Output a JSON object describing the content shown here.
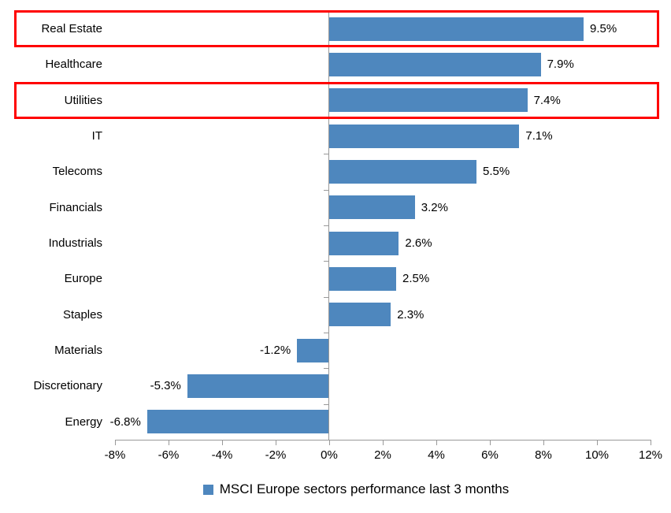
{
  "chart_data": {
    "type": "bar",
    "orientation": "horizontal",
    "categories": [
      "Real Estate",
      "Healthcare",
      "Utilities",
      "IT",
      "Telecoms",
      "Financials",
      "Industrials",
      "Europe",
      "Staples",
      "Materials",
      "Discretionary",
      "Energy"
    ],
    "values": [
      9.5,
      7.9,
      7.4,
      7.1,
      5.5,
      3.2,
      2.6,
      2.5,
      2.3,
      -1.2,
      -5.3,
      -6.8
    ],
    "value_labels": [
      "9.5%",
      "7.9%",
      "7.4%",
      "7.1%",
      "5.5%",
      "3.2%",
      "2.6%",
      "2.5%",
      "2.3%",
      "-1.2%",
      "-5.3%",
      "-6.8%"
    ],
    "x_ticks": [
      -8,
      -6,
      -4,
      -2,
      0,
      2,
      4,
      6,
      8,
      10,
      12
    ],
    "x_tick_labels": [
      "-8%",
      "-6%",
      "-4%",
      "-2%",
      "0%",
      "2%",
      "4%",
      "6%",
      "8%",
      "10%",
      "12%"
    ],
    "xlim": [
      -8,
      12
    ],
    "grid": false,
    "legend": "MSCI Europe sectors performance last 3 months",
    "legend_position": "bottom",
    "bar_color": "#4E87BE",
    "axis_color": "#999999",
    "text_color": "#000000",
    "highlight_color": "#FF0000",
    "highlighted_categories": [
      "Real Estate",
      "Utilities"
    ]
  }
}
